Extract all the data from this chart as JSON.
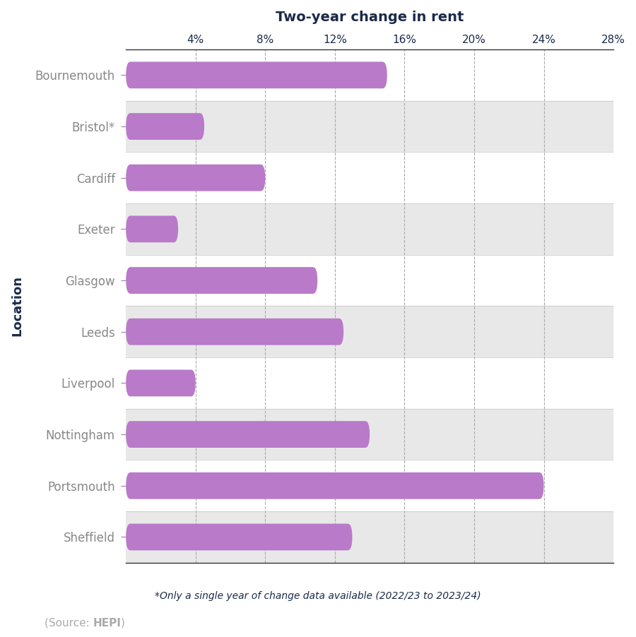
{
  "categories": [
    "Bournemouth",
    "Bristol*",
    "Cardiff",
    "Exeter",
    "Glasgow",
    "Leeds",
    "Liverpool",
    "Nottingham",
    "Portsmouth",
    "Sheffield"
  ],
  "values": [
    15.0,
    4.5,
    8.0,
    3.0,
    11.0,
    12.5,
    4.0,
    14.0,
    24.0,
    13.0
  ],
  "bar_color": "#b97ac9",
  "title": "Two-year change in rent",
  "ylabel": "Location",
  "xlim": [
    0,
    28
  ],
  "xticks": [
    0,
    4,
    8,
    12,
    16,
    20,
    24,
    28
  ],
  "xtick_labels": [
    "",
    "4%",
    "8%",
    "12%",
    "16%",
    "20%",
    "24%",
    "28%"
  ],
  "footnote": "*Only a single year of change data available (2022/23 to 2023/24)",
  "source_text": "(Source: ",
  "source_bold": "HEPI",
  "source_end": ")",
  "title_color": "#1b2a4a",
  "label_color": "#1b2a4a",
  "footnote_color": "#1b2a4a",
  "source_color": "#aaaaaa",
  "bar_height": 0.52,
  "background_gray": "#e8e8e8",
  "background_white": "#ffffff",
  "grid_color": "#aaaaaa",
  "spine_color": "#333333",
  "tick_color": "#888888"
}
